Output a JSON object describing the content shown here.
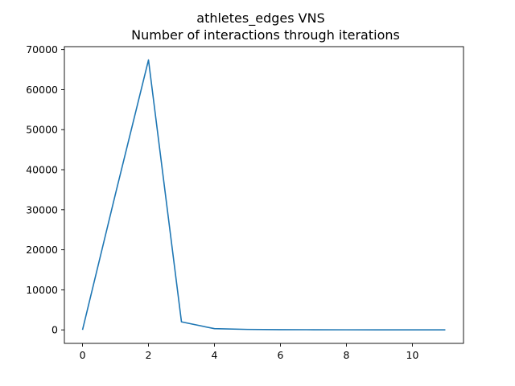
{
  "chart_data": {
    "type": "line",
    "title": "athletes_edges VNS",
    "subtitle": "Number of interactions through iterations",
    "xlabel": "",
    "ylabel": "",
    "xlim": [
      -0.55,
      11.55
    ],
    "ylim": [
      -3370,
      70730
    ],
    "xticks": [
      0,
      2,
      4,
      6,
      8,
      10
    ],
    "yticks": [
      0,
      10000,
      20000,
      30000,
      40000,
      50000,
      60000,
      70000
    ],
    "grid": false,
    "line_color": "#1f77b4",
    "series": [
      {
        "x": [
          0,
          1,
          2,
          3,
          4,
          5,
          6,
          7,
          8,
          9,
          10,
          11
        ],
        "values": [
          0,
          34000,
          67400,
          2000,
          300,
          120,
          50,
          40,
          20,
          15,
          10,
          5
        ]
      }
    ]
  }
}
